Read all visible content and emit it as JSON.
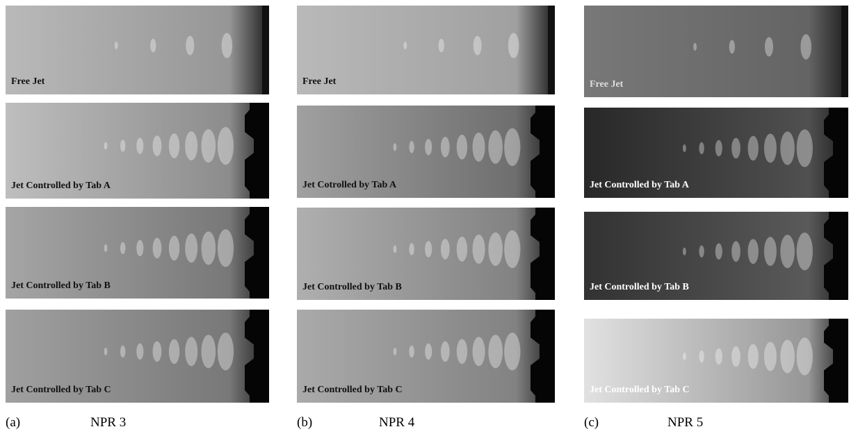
{
  "figure": {
    "columns": [
      {
        "label": "(a)",
        "caption": "NPR 3",
        "panels": [
          "Free Jet",
          "Jet Controlled by Tab A",
          "Jet Controlled by Tab B",
          "Jet Controlled by Tab C"
        ]
      },
      {
        "label": "(b)",
        "caption": "NPR 4",
        "panels": [
          "Free Jet",
          "Jet Cotrolled by Tab A",
          "Jet Controlled by Tab B",
          "Jet Controlled by Tab C"
        ]
      },
      {
        "label": "(c)",
        "caption": "NPR 5",
        "panels": [
          "Free Jet",
          "Jet Controlled by Tab A",
          "Jet Controlled by Tab B",
          "Jet Controlled by Tab C"
        ]
      }
    ]
  }
}
